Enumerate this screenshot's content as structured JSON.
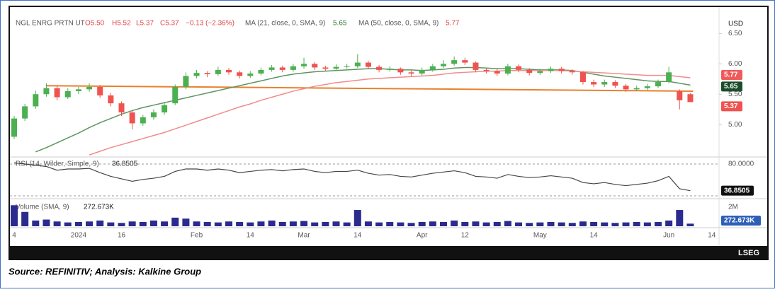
{
  "chart_data": {
    "type": "candlestick",
    "header": {
      "symbol": "NGL ENRG PRTN UT",
      "open": "O5.50",
      "high": "H5.52",
      "low": "L5.37",
      "close": "C5.37",
      "change": "−0.13 (−2.36%)"
    },
    "axis_unit": "USD",
    "last_label": "5.37",
    "up_color": "#4caf50",
    "down_color": "#ef5350",
    "ylim": [
      4.49,
      6.76
    ],
    "yticks": [
      {
        "value": 6.5,
        "label": "6.50"
      },
      {
        "value": 6.0,
        "label": "6.00"
      },
      {
        "value": 5.5,
        "label": "5.50"
      },
      {
        "value": 5.0,
        "label": "5.00"
      }
    ],
    "categories": [
      "4",
      null,
      null,
      null,
      null,
      null,
      "2024",
      null,
      null,
      null,
      "16",
      null,
      null,
      null,
      null,
      null,
      null,
      "Feb",
      null,
      null,
      null,
      null,
      "14",
      null,
      null,
      null,
      null,
      "Mar",
      null,
      null,
      null,
      null,
      "14",
      null,
      null,
      null,
      null,
      null,
      "Apr",
      null,
      null,
      null,
      "12",
      null,
      null,
      null,
      null,
      null,
      null,
      "May",
      null,
      null,
      null,
      null,
      "14",
      null,
      null,
      null,
      null,
      null,
      null,
      "Jun",
      null,
      null,
      null,
      "14"
    ],
    "open": [
      4.8,
      5.1,
      5.3,
      5.5,
      5.6,
      5.45,
      5.55,
      5.58,
      5.62,
      5.48,
      5.35,
      5.2,
      5.02,
      5.12,
      5.2,
      5.35,
      5.62,
      5.8,
      5.85,
      5.83,
      5.9,
      5.86,
      5.8,
      5.84,
      5.9,
      5.94,
      5.9,
      5.96,
      6.0,
      5.94,
      5.92,
      5.95,
      5.96,
      6.02,
      5.95,
      5.9,
      5.92,
      5.86,
      5.84,
      5.9,
      5.96,
      6.0,
      6.06,
      6.02,
      5.9,
      5.88,
      5.84,
      5.96,
      5.9,
      5.85,
      5.88,
      5.92,
      5.88,
      5.86,
      5.7,
      5.66,
      5.7,
      5.64,
      5.58,
      5.6,
      5.63,
      5.7,
      5.55,
      5.5,
      null,
      null
    ],
    "high": [
      5.14,
      5.34,
      5.56,
      5.68,
      5.64,
      5.6,
      5.62,
      5.68,
      5.65,
      5.52,
      5.38,
      5.24,
      5.16,
      5.25,
      5.36,
      5.66,
      5.86,
      5.9,
      5.88,
      5.95,
      5.93,
      5.89,
      5.88,
      5.94,
      5.98,
      5.97,
      6.0,
      6.1,
      6.03,
      5.97,
      5.99,
      6.0,
      6.16,
      6.05,
      5.98,
      5.96,
      5.94,
      5.89,
      5.94,
      6.0,
      6.06,
      6.12,
      6.1,
      6.04,
      5.93,
      5.91,
      6.0,
      5.99,
      5.93,
      5.92,
      5.96,
      5.95,
      5.91,
      5.88,
      5.74,
      5.74,
      5.73,
      5.67,
      5.64,
      5.67,
      5.74,
      5.95,
      5.58,
      5.52,
      null,
      null
    ],
    "low": [
      4.76,
      5.06,
      5.26,
      5.46,
      5.4,
      5.42,
      5.5,
      5.54,
      5.44,
      5.3,
      5.14,
      4.92,
      4.98,
      5.08,
      5.16,
      5.32,
      5.58,
      5.76,
      5.78,
      5.8,
      5.82,
      5.76,
      5.77,
      5.81,
      5.87,
      5.86,
      5.87,
      5.92,
      5.9,
      5.88,
      5.89,
      5.92,
      5.93,
      5.91,
      5.86,
      5.87,
      5.82,
      5.8,
      5.81,
      5.87,
      5.93,
      5.97,
      5.98,
      5.86,
      5.84,
      5.8,
      5.81,
      5.86,
      5.81,
      5.82,
      5.85,
      5.84,
      5.82,
      5.66,
      5.62,
      5.62,
      5.6,
      5.54,
      5.55,
      5.57,
      5.6,
      5.68,
      5.25,
      5.37,
      null,
      null
    ],
    "close": [
      5.1,
      5.3,
      5.5,
      5.6,
      5.45,
      5.55,
      5.58,
      5.62,
      5.48,
      5.35,
      5.2,
      5.02,
      5.12,
      5.2,
      5.32,
      5.62,
      5.8,
      5.85,
      5.83,
      5.9,
      5.86,
      5.8,
      5.84,
      5.9,
      5.94,
      5.9,
      5.96,
      6.0,
      5.94,
      5.92,
      5.95,
      5.96,
      6.02,
      5.95,
      5.9,
      5.92,
      5.86,
      5.84,
      5.9,
      5.96,
      6.0,
      6.06,
      6.02,
      5.9,
      5.88,
      5.84,
      5.96,
      5.9,
      5.85,
      5.88,
      5.92,
      5.88,
      5.86,
      5.7,
      5.66,
      5.7,
      5.64,
      5.58,
      5.6,
      5.63,
      5.7,
      5.86,
      5.4,
      5.37,
      null,
      null
    ],
    "series": [
      {
        "name": "MA (21, close, 0, SMA, 9)",
        "last_label": "5.65",
        "color": "#5e9460",
        "values": [
          null,
          null,
          4.55,
          4.62,
          4.7,
          4.78,
          4.86,
          4.95,
          5.03,
          5.1,
          5.17,
          5.23,
          5.28,
          5.32,
          5.36,
          5.4,
          5.44,
          5.48,
          5.52,
          5.56,
          5.6,
          5.64,
          5.68,
          5.72,
          5.76,
          5.8,
          5.83,
          5.85,
          5.87,
          5.88,
          5.89,
          5.9,
          5.91,
          5.92,
          5.92,
          5.91,
          5.9,
          5.9,
          5.89,
          5.9,
          5.91,
          5.93,
          5.94,
          5.94,
          5.93,
          5.92,
          5.92,
          5.92,
          5.91,
          5.9,
          5.9,
          5.9,
          5.89,
          5.86,
          5.83,
          5.8,
          5.78,
          5.76,
          5.74,
          5.72,
          5.71,
          5.71,
          5.68,
          5.65,
          null,
          null
        ]
      },
      {
        "name": "MA (50, close, 0, SMA, 9)",
        "last_label": "5.77",
        "color": "#f28b8b",
        "values": [
          null,
          null,
          null,
          null,
          null,
          null,
          null,
          4.5,
          4.56,
          4.62,
          4.67,
          4.72,
          4.77,
          4.82,
          4.87,
          4.93,
          4.99,
          5.05,
          5.11,
          5.17,
          5.23,
          5.29,
          5.34,
          5.4,
          5.45,
          5.5,
          5.55,
          5.59,
          5.63,
          5.66,
          5.69,
          5.71,
          5.73,
          5.75,
          5.76,
          5.77,
          5.78,
          5.79,
          5.8,
          5.81,
          5.83,
          5.85,
          5.86,
          5.87,
          5.88,
          5.88,
          5.89,
          5.89,
          5.89,
          5.89,
          5.89,
          5.89,
          5.88,
          5.87,
          5.86,
          5.85,
          5.84,
          5.83,
          5.82,
          5.81,
          5.81,
          5.81,
          5.79,
          5.77,
          null,
          null
        ]
      }
    ],
    "trendline": {
      "color": "#e8812d",
      "values": [
        5.64,
        5.55
      ]
    },
    "rsi": {
      "name": "RSI (14, Wilder, Simple, 9)",
      "last_label": "36.8505",
      "color": "#444444",
      "ylim": [
        25,
        88
      ],
      "yticks": [
        {
          "value": 80,
          "label": "80.0000"
        }
      ],
      "values": [
        82,
        80,
        78,
        76,
        70,
        72,
        72,
        73,
        66,
        60,
        56,
        52,
        55,
        57,
        60,
        68,
        72,
        72,
        70,
        72,
        70,
        66,
        68,
        70,
        71,
        69,
        71,
        72,
        68,
        66,
        68,
        68,
        70,
        65,
        62,
        63,
        60,
        59,
        62,
        65,
        67,
        69,
        66,
        60,
        59,
        57,
        63,
        60,
        58,
        59,
        61,
        59,
        57,
        50,
        48,
        50,
        47,
        45,
        47,
        49,
        53,
        60,
        40,
        36.8505,
        null,
        null
      ]
    },
    "volume": {
      "name": "Volume (SMA, 9)",
      "last_label": "272.673K",
      "color": "#2b2b8f",
      "ylim": [
        0,
        2740000
      ],
      "yticks": [
        {
          "value": 2000000,
          "label": "2M"
        }
      ],
      "values": [
        2200000,
        1500000,
        600000,
        700000,
        500000,
        400000,
        450000,
        500000,
        600000,
        400000,
        350000,
        500000,
        450000,
        600000,
        500000,
        900000,
        800000,
        500000,
        450000,
        400000,
        500000,
        450000,
        400000,
        500000,
        600000,
        450000,
        500000,
        550000,
        400000,
        450000,
        500000,
        400000,
        1700000,
        500000,
        400000,
        450000,
        400000,
        350000,
        450000,
        500000,
        450000,
        600000,
        450000,
        500000,
        400000,
        450000,
        550000,
        400000,
        350000,
        400000,
        450000,
        400000,
        350000,
        500000,
        450000,
        400000,
        350000,
        400000,
        450000,
        400000,
        450000,
        600000,
        1700000,
        272673,
        null,
        null
      ]
    }
  },
  "footer": {
    "logo": "LSEG",
    "caption": "Source: REFINITIV; Analysis: Kalkine Group"
  }
}
